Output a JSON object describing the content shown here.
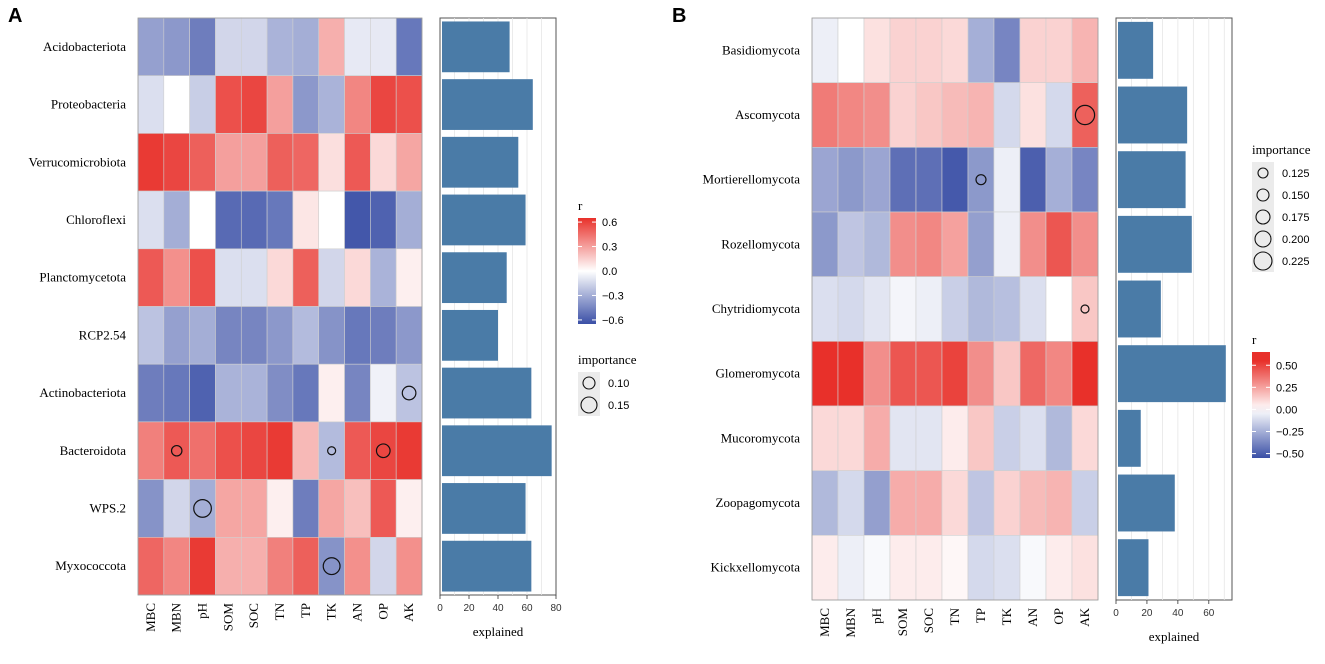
{
  "chart_data": [
    {
      "panel": "A",
      "type": "heatmap",
      "columns": [
        "MBC",
        "MBN",
        "pH",
        "SOM",
        "SOC",
        "TN",
        "TP",
        "TK",
        "AN",
        "OP",
        "AK"
      ],
      "rows": [
        "Acidobacteriota",
        "Proteobacteria",
        "Verrucomicrobiota",
        "Chloroflexi",
        "Planctomycetota",
        "RCP2.54",
        "Actinobacteriota",
        "Bacteroidota",
        "WPS.2",
        "Myxococcota"
      ],
      "r": [
        [
          -0.35,
          -0.38,
          -0.48,
          -0.15,
          -0.15,
          -0.28,
          -0.3,
          0.25,
          -0.08,
          -0.08,
          -0.5
        ],
        [
          -0.12,
          0.0,
          -0.18,
          0.55,
          0.58,
          0.3,
          -0.38,
          -0.28,
          0.38,
          0.58,
          0.55
        ],
        [
          0.62,
          0.58,
          0.5,
          0.3,
          0.3,
          0.5,
          0.48,
          0.1,
          0.52,
          0.12,
          0.28
        ],
        [
          -0.12,
          -0.3,
          0.0,
          -0.55,
          -0.55,
          -0.5,
          0.08,
          0.0,
          -0.62,
          -0.58,
          -0.3
        ],
        [
          0.52,
          0.35,
          0.55,
          -0.12,
          -0.12,
          0.12,
          0.5,
          -0.15,
          0.12,
          -0.28,
          0.05
        ],
        [
          -0.22,
          -0.35,
          -0.3,
          -0.45,
          -0.45,
          -0.38,
          -0.25,
          -0.4,
          -0.5,
          -0.48,
          -0.38
        ],
        [
          -0.48,
          -0.5,
          -0.58,
          -0.28,
          -0.28,
          -0.42,
          -0.5,
          0.05,
          -0.45,
          -0.05,
          -0.22
        ],
        [
          0.4,
          0.52,
          0.45,
          0.55,
          0.58,
          0.62,
          0.22,
          -0.25,
          0.52,
          0.58,
          0.62
        ],
        [
          -0.4,
          -0.15,
          -0.3,
          0.28,
          0.28,
          0.05,
          -0.48,
          0.28,
          0.2,
          0.52,
          0.05
        ],
        [
          0.48,
          0.38,
          0.62,
          0.25,
          0.25,
          0.4,
          0.5,
          -0.4,
          0.35,
          -0.15,
          0.35
        ]
      ],
      "importance_points": [
        {
          "row": "Actinobacteriota",
          "col": "AK",
          "value": 0.12
        },
        {
          "row": "Bacteroidota",
          "col": "MBN",
          "value": 0.08
        },
        {
          "row": "Bacteroidota",
          "col": "TK",
          "value": 0.05
        },
        {
          "row": "Bacteroidota",
          "col": "OP",
          "value": 0.12
        },
        {
          "row": "WPS.2",
          "col": "pH",
          "value": 0.17
        },
        {
          "row": "Myxococcota",
          "col": "TK",
          "value": 0.16
        }
      ],
      "explained": [
        48,
        64,
        54,
        59,
        46,
        40,
        63,
        77,
        59,
        63
      ],
      "explained_ticks": [
        0,
        20,
        40,
        60,
        80
      ],
      "explained_xlim": [
        0,
        80
      ],
      "explained_label": "explained",
      "r_legend": {
        "title": "r",
        "ticks": [
          0.6,
          0.3,
          0.0,
          -0.3,
          -0.6
        ],
        "tick_labels": [
          "0.6",
          "0.3",
          "0.0",
          "−0.3",
          "−0.6"
        ],
        "range": [
          -0.65,
          0.65
        ]
      },
      "importance_legend": {
        "title": "importance",
        "values": [
          0.1,
          0.15
        ],
        "labels": [
          "0.10",
          "0.15"
        ]
      }
    },
    {
      "panel": "B",
      "type": "heatmap",
      "columns": [
        "MBC",
        "MBN",
        "pH",
        "SOM",
        "SOC",
        "TN",
        "TP",
        "TK",
        "AN",
        "OP",
        "AK"
      ],
      "rows": [
        "Basidiomycota",
        "Ascomycota",
        "Mortierellomycota",
        "Rozellomycota",
        "Chytridiomycota",
        "Glomeromycota",
        "Mucoromycota",
        "Zoopagomycota",
        "Kickxellomycota"
      ],
      "r": [
        [
          -0.05,
          0.0,
          0.08,
          0.12,
          0.12,
          0.1,
          -0.25,
          -0.38,
          0.12,
          0.12,
          0.2
        ],
        [
          0.35,
          0.32,
          0.3,
          0.12,
          0.15,
          0.18,
          0.2,
          -0.12,
          0.08,
          -0.12,
          0.42
        ],
        [
          -0.28,
          -0.32,
          -0.28,
          -0.45,
          -0.45,
          -0.52,
          -0.32,
          -0.05,
          -0.5,
          -0.25,
          -0.38
        ],
        [
          -0.32,
          -0.18,
          -0.22,
          0.3,
          0.32,
          0.25,
          -0.3,
          -0.05,
          0.3,
          0.45,
          0.3
        ],
        [
          -0.1,
          -0.12,
          -0.08,
          -0.03,
          -0.05,
          -0.15,
          -0.22,
          -0.2,
          -0.1,
          0.0,
          0.15
        ],
        [
          0.55,
          0.62,
          0.3,
          0.45,
          0.45,
          0.5,
          0.3,
          0.15,
          0.4,
          0.32,
          0.55
        ],
        [
          0.1,
          0.1,
          0.22,
          -0.08,
          -0.08,
          0.05,
          0.15,
          -0.15,
          -0.1,
          -0.22,
          0.1
        ],
        [
          -0.22,
          -0.12,
          -0.3,
          0.22,
          0.22,
          0.1,
          -0.18,
          0.12,
          0.18,
          0.2,
          -0.15
        ],
        [
          0.05,
          -0.05,
          -0.02,
          0.05,
          0.05,
          0.02,
          -0.12,
          -0.1,
          -0.02,
          0.05,
          0.08
        ]
      ],
      "importance_points": [
        {
          "row": "Ascomycota",
          "col": "AK",
          "value": 0.24
        },
        {
          "row": "Mortierellomycota",
          "col": "TP",
          "value": 0.125
        },
        {
          "row": "Chytridiomycota",
          "col": "AK",
          "value": 0.1
        }
      ],
      "explained": [
        24,
        46,
        45,
        49,
        29,
        71,
        16,
        38,
        21
      ],
      "explained_ticks": [
        0,
        20,
        40,
        60
      ],
      "explained_xlim": [
        0,
        75
      ],
      "explained_label": "explained",
      "importance_legend": {
        "title": "importance",
        "values": [
          0.125,
          0.15,
          0.175,
          0.2,
          0.225
        ],
        "labels": [
          "0.125",
          "0.150",
          "0.175",
          "0.200",
          "0.225"
        ]
      },
      "r_legend": {
        "title": "r",
        "ticks": [
          0.5,
          0.25,
          0.0,
          -0.25,
          -0.5
        ],
        "tick_labels": [
          "0.50",
          "0.25",
          "0.00",
          "−0.25",
          "−0.50"
        ],
        "range": [
          -0.55,
          0.65
        ]
      }
    }
  ],
  "colors": {
    "high": "#e8302a",
    "mid": "#ffffff",
    "low": "#3a4fa6",
    "bar": "#4a7ba7",
    "grid": "#e6e6e6",
    "cell_border": "#cfcfcf"
  }
}
